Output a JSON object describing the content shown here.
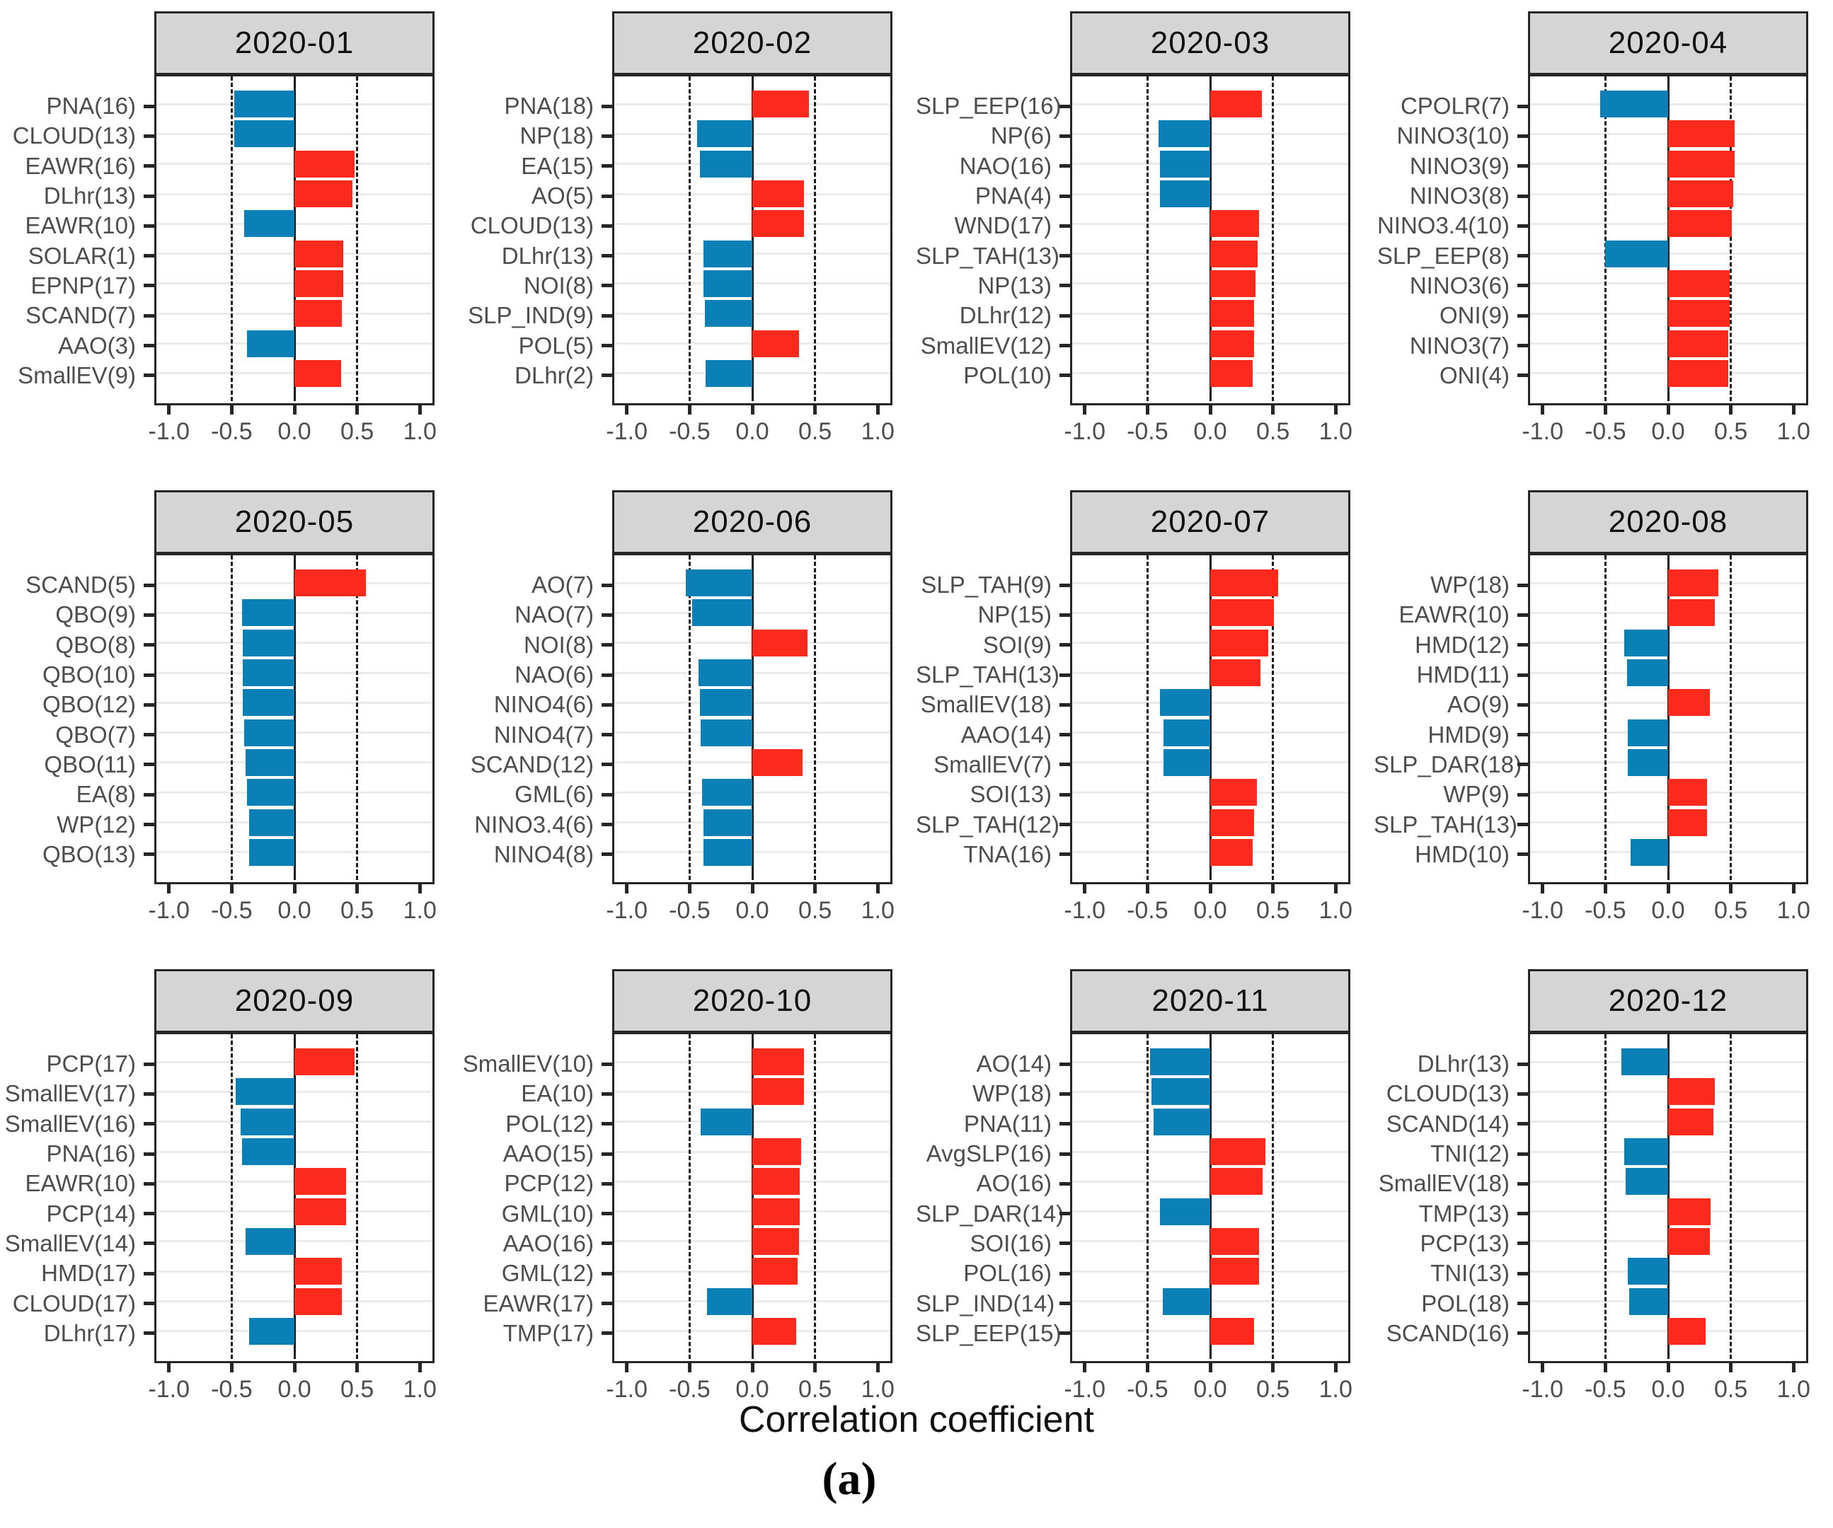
{
  "figure": {
    "xlabel": "Correlation coefficient",
    "caption": "(a)"
  },
  "style": {
    "positive_color": "#FB2A1C",
    "negative_color": "#0A80B6",
    "header_fill": "#D5D5D5",
    "gridline_color": "#EBEBEB",
    "axis_text_color": "#4D4D4D",
    "border_color": "#262626"
  },
  "chart_data": [
    {
      "type": "bar",
      "title": "2020-01",
      "orientation": "horizontal",
      "xlim": [
        -1,
        1
      ],
      "grid": "horizontal",
      "guides": [
        -0.5,
        0.5
      ],
      "x_tick_labels": [
        "-1.0",
        "-0.5",
        "0.0",
        "0.5",
        "1.0"
      ],
      "x_ticks": [
        -1.0,
        -0.5,
        0.0,
        0.5,
        1.0
      ],
      "categories": [
        "PNA(16)",
        "CLOUD(13)",
        "EAWR(16)",
        "DLhr(13)",
        "EAWR(10)",
        "SOLAR(1)",
        "EPNP(17)",
        "SCAND(7)",
        "AAO(3)",
        "SmallEV(9)"
      ],
      "values": [
        -0.48,
        -0.48,
        0.48,
        0.46,
        -0.4,
        0.39,
        0.39,
        0.38,
        -0.38,
        0.37
      ]
    },
    {
      "type": "bar",
      "title": "2020-02",
      "orientation": "horizontal",
      "xlim": [
        -1,
        1
      ],
      "grid": "horizontal",
      "guides": [
        -0.5,
        0.5
      ],
      "x_tick_labels": [
        "-1.0",
        "-0.5",
        "0.0",
        "0.5",
        "1.0"
      ],
      "x_ticks": [
        -1.0,
        -0.5,
        0.0,
        0.5,
        1.0
      ],
      "categories": [
        "PNA(18)",
        "NP(18)",
        "EA(15)",
        "AO(5)",
        "CLOUD(13)",
        "DLhr(13)",
        "NOI(8)",
        "SLP_IND(9)",
        "POL(5)",
        "DLhr(2)"
      ],
      "values": [
        0.45,
        -0.44,
        -0.42,
        0.41,
        0.41,
        -0.39,
        -0.39,
        -0.38,
        0.37,
        -0.37
      ]
    },
    {
      "type": "bar",
      "title": "2020-03",
      "orientation": "horizontal",
      "xlim": [
        -1,
        1
      ],
      "grid": "horizontal",
      "guides": [
        -0.5,
        0.5
      ],
      "x_tick_labels": [
        "-1.0",
        "-0.5",
        "0.0",
        "0.5",
        "1.0"
      ],
      "x_ticks": [
        -1.0,
        -0.5,
        0.0,
        0.5,
        1.0
      ],
      "categories": [
        "SLP_EEP(16)",
        "NP(6)",
        "NAO(16)",
        "PNA(4)",
        "WND(17)",
        "SLP_TAH(13)",
        "NP(13)",
        "DLhr(12)",
        "SmallEV(12)",
        "POL(10)"
      ],
      "values": [
        0.41,
        -0.41,
        -0.4,
        -0.4,
        0.39,
        0.38,
        0.36,
        0.35,
        0.35,
        0.34
      ]
    },
    {
      "type": "bar",
      "title": "2020-04",
      "orientation": "horizontal",
      "xlim": [
        -1,
        1
      ],
      "grid": "horizontal",
      "guides": [
        -0.5,
        0.5
      ],
      "x_tick_labels": [
        "-1.0",
        "-0.5",
        "0.0",
        "0.5",
        "1.0"
      ],
      "x_ticks": [
        -1.0,
        -0.5,
        0.0,
        0.5,
        1.0
      ],
      "categories": [
        "CPOLR(7)",
        "NINO3(10)",
        "NINO3(9)",
        "NINO3(8)",
        "NINO3.4(10)",
        "SLP_EEP(8)",
        "NINO3(6)",
        "ONI(9)",
        "NINO3(7)",
        "ONI(4)"
      ],
      "values": [
        -0.54,
        0.53,
        0.53,
        0.52,
        0.51,
        -0.5,
        0.49,
        0.49,
        0.48,
        0.48
      ]
    },
    {
      "type": "bar",
      "title": "2020-05",
      "orientation": "horizontal",
      "xlim": [
        -1,
        1
      ],
      "grid": "horizontal",
      "guides": [
        -0.5,
        0.5
      ],
      "x_tick_labels": [
        "-1.0",
        "-0.5",
        "0.0",
        "0.5",
        "1.0"
      ],
      "x_ticks": [
        -1.0,
        -0.5,
        0.0,
        0.5,
        1.0
      ],
      "categories": [
        "SCAND(5)",
        "QBO(9)",
        "QBO(8)",
        "QBO(10)",
        "QBO(12)",
        "QBO(7)",
        "QBO(11)",
        "EA(8)",
        "WP(12)",
        "QBO(13)"
      ],
      "values": [
        0.57,
        -0.42,
        -0.41,
        -0.41,
        -0.41,
        -0.4,
        -0.39,
        -0.38,
        -0.36,
        -0.36
      ]
    },
    {
      "type": "bar",
      "title": "2020-06",
      "orientation": "horizontal",
      "xlim": [
        -1,
        1
      ],
      "grid": "horizontal",
      "guides": [
        -0.5,
        0.5
      ],
      "x_tick_labels": [
        "-1.0",
        "-0.5",
        "0.0",
        "0.5",
        "1.0"
      ],
      "x_ticks": [
        -1.0,
        -0.5,
        0.0,
        0.5,
        1.0
      ],
      "categories": [
        "AO(7)",
        "NAO(7)",
        "NOI(8)",
        "NAO(6)",
        "NINO4(6)",
        "NINO4(7)",
        "SCAND(12)",
        "GML(6)",
        "NINO3.4(6)",
        "NINO4(8)"
      ],
      "values": [
        -0.53,
        -0.48,
        0.44,
        -0.43,
        -0.42,
        -0.41,
        0.4,
        -0.4,
        -0.39,
        -0.39
      ]
    },
    {
      "type": "bar",
      "title": "2020-07",
      "orientation": "horizontal",
      "xlim": [
        -1,
        1
      ],
      "grid": "horizontal",
      "guides": [
        -0.5,
        0.5
      ],
      "x_tick_labels": [
        "-1.0",
        "-0.5",
        "0.0",
        "0.5",
        "1.0"
      ],
      "x_ticks": [
        -1.0,
        -0.5,
        0.0,
        0.5,
        1.0
      ],
      "categories": [
        "SLP_TAH(9)",
        "NP(15)",
        "SOI(9)",
        "SLP_TAH(13)",
        "SmallEV(18)",
        "AAO(14)",
        "SmallEV(7)",
        "SOI(13)",
        "SLP_TAH(12)",
        "TNA(16)"
      ],
      "values": [
        0.54,
        0.51,
        0.46,
        0.4,
        -0.4,
        -0.37,
        -0.37,
        0.37,
        0.35,
        0.34
      ]
    },
    {
      "type": "bar",
      "title": "2020-08",
      "orientation": "horizontal",
      "xlim": [
        -1,
        1
      ],
      "grid": "horizontal",
      "guides": [
        -0.5,
        0.5
      ],
      "x_tick_labels": [
        "-1.0",
        "-0.5",
        "0.0",
        "0.5",
        "1.0"
      ],
      "x_ticks": [
        -1.0,
        -0.5,
        0.0,
        0.5,
        1.0
      ],
      "categories": [
        "WP(18)",
        "EAWR(10)",
        "HMD(12)",
        "HMD(11)",
        "AO(9)",
        "HMD(9)",
        "SLP_DAR(18)",
        "WP(9)",
        "SLP_TAH(13)",
        "HMD(10)"
      ],
      "values": [
        0.4,
        0.37,
        -0.35,
        -0.33,
        0.33,
        -0.32,
        -0.32,
        0.31,
        0.31,
        -0.3
      ]
    },
    {
      "type": "bar",
      "title": "2020-09",
      "orientation": "horizontal",
      "xlim": [
        -1,
        1
      ],
      "grid": "horizontal",
      "guides": [
        -0.5,
        0.5
      ],
      "x_tick_labels": [
        "-1.0",
        "-0.5",
        "0.0",
        "0.5",
        "1.0"
      ],
      "x_ticks": [
        -1.0,
        -0.5,
        0.0,
        0.5,
        1.0
      ],
      "categories": [
        "PCP(17)",
        "SmallEV(17)",
        "SmallEV(16)",
        "PNA(16)",
        "EAWR(10)",
        "PCP(14)",
        "SmallEV(14)",
        "HMD(17)",
        "CLOUD(17)",
        "DLhr(17)"
      ],
      "values": [
        0.48,
        -0.47,
        -0.43,
        -0.42,
        0.41,
        0.41,
        -0.39,
        0.38,
        0.38,
        -0.36
      ]
    },
    {
      "type": "bar",
      "title": "2020-10",
      "orientation": "horizontal",
      "xlim": [
        -1,
        1
      ],
      "grid": "horizontal",
      "guides": [
        -0.5,
        0.5
      ],
      "x_tick_labels": [
        "-1.0",
        "-0.5",
        "0.0",
        "0.5",
        "1.0"
      ],
      "x_ticks": [
        -1.0,
        -0.5,
        0.0,
        0.5,
        1.0
      ],
      "categories": [
        "SmallEV(10)",
        "EA(10)",
        "POL(12)",
        "AAO(15)",
        "PCP(12)",
        "GML(10)",
        "AAO(16)",
        "GML(12)",
        "EAWR(17)",
        "TMP(17)"
      ],
      "values": [
        0.41,
        0.41,
        -0.41,
        0.39,
        0.38,
        0.38,
        0.37,
        0.36,
        -0.36,
        0.35
      ]
    },
    {
      "type": "bar",
      "title": "2020-11",
      "orientation": "horizontal",
      "xlim": [
        -1,
        1
      ],
      "grid": "horizontal",
      "guides": [
        -0.5,
        0.5
      ],
      "x_tick_labels": [
        "-1.0",
        "-0.5",
        "0.0",
        "0.5",
        "1.0"
      ],
      "x_ticks": [
        -1.0,
        -0.5,
        0.0,
        0.5,
        1.0
      ],
      "categories": [
        "AO(14)",
        "WP(18)",
        "PNA(11)",
        "AvgSLP(16)",
        "AO(16)",
        "SLP_DAR(14)",
        "SOI(16)",
        "POL(16)",
        "SLP_IND(14)",
        "SLP_EEP(15)"
      ],
      "values": [
        -0.48,
        -0.47,
        -0.45,
        0.44,
        0.42,
        -0.4,
        0.39,
        0.39,
        -0.38,
        0.35
      ]
    },
    {
      "type": "bar",
      "title": "2020-12",
      "orientation": "horizontal",
      "xlim": [
        -1,
        1
      ],
      "grid": "horizontal",
      "guides": [
        -0.5,
        0.5
      ],
      "x_tick_labels": [
        "-1.0",
        "-0.5",
        "0.0",
        "0.5",
        "1.0"
      ],
      "x_ticks": [
        -1.0,
        -0.5,
        0.0,
        0.5,
        1.0
      ],
      "categories": [
        "DLhr(13)",
        "CLOUD(13)",
        "SCAND(14)",
        "TNI(12)",
        "SmallEV(18)",
        "TMP(13)",
        "PCP(13)",
        "TNI(13)",
        "POL(18)",
        "SCAND(16)"
      ],
      "values": [
        -0.37,
        0.37,
        0.36,
        -0.35,
        -0.34,
        0.34,
        0.33,
        -0.32,
        -0.31,
        0.3
      ]
    }
  ]
}
